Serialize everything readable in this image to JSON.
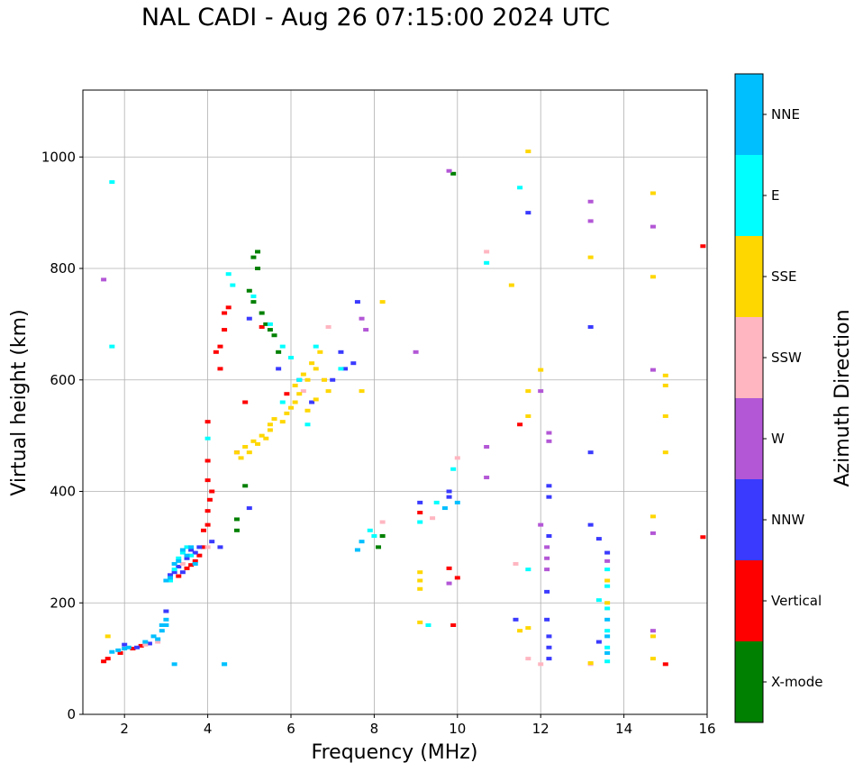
{
  "chart_data": {
    "type": "scatter",
    "title": "NAL CADI - Aug 26 07:15:00 2024 UTC",
    "xlabel": "Frequency (MHz)",
    "ylabel": "Virtual height (km)",
    "xlim": [
      1,
      16
    ],
    "ylim": [
      0,
      1120
    ],
    "xticks": [
      2,
      4,
      6,
      8,
      10,
      12,
      14,
      16
    ],
    "yticks": [
      0,
      200,
      400,
      600,
      800,
      1000
    ],
    "grid": true,
    "colorbar": {
      "label": "Azimuth Direction",
      "categories": [
        {
          "name": "X-mode",
          "color": "#008000"
        },
        {
          "name": "Vertical",
          "color": "#ff0000"
        },
        {
          "name": "NNW",
          "color": "#3a3aff"
        },
        {
          "name": "W",
          "color": "#b357d6"
        },
        {
          "name": "SSW",
          "color": "#ffb6c1"
        },
        {
          "name": "SSE",
          "color": "#ffd700"
        },
        {
          "name": "E",
          "color": "#00ffff"
        },
        {
          "name": "NNE",
          "color": "#00bfff"
        }
      ]
    },
    "series": [
      {
        "name": "Vertical",
        "points": [
          [
            1.5,
            95
          ],
          [
            1.6,
            100
          ],
          [
            1.9,
            110
          ],
          [
            2.2,
            118
          ],
          [
            2.4,
            123
          ],
          [
            3.3,
            248
          ],
          [
            3.5,
            262
          ],
          [
            3.6,
            268
          ],
          [
            3.7,
            275
          ],
          [
            3.8,
            285
          ],
          [
            3.9,
            300
          ],
          [
            3.9,
            330
          ],
          [
            4.0,
            340
          ],
          [
            4.0,
            365
          ],
          [
            4.05,
            385
          ],
          [
            4.1,
            400
          ],
          [
            4.0,
            420
          ],
          [
            4.0,
            455
          ],
          [
            4.0,
            525
          ],
          [
            4.2,
            650
          ],
          [
            4.3,
            660
          ],
          [
            4.4,
            690
          ],
          [
            4.4,
            720
          ],
          [
            4.5,
            730
          ],
          [
            4.9,
            560
          ],
          [
            4.7,
            470
          ],
          [
            4.3,
            620
          ],
          [
            5.3,
            695
          ],
          [
            5.9,
            575
          ],
          [
            9.1,
            362
          ],
          [
            9.8,
            262
          ],
          [
            9.9,
            160
          ],
          [
            10.0,
            245
          ],
          [
            11.5,
            520
          ],
          [
            15.0,
            90
          ],
          [
            15.9,
            840
          ],
          [
            15.9,
            318
          ]
        ]
      },
      {
        "name": "X-mode",
        "points": [
          [
            5.0,
            760
          ],
          [
            5.2,
            830
          ],
          [
            5.2,
            800
          ],
          [
            5.1,
            740
          ],
          [
            5.3,
            720
          ],
          [
            5.5,
            690
          ],
          [
            5.4,
            700
          ],
          [
            5.6,
            680
          ],
          [
            5.7,
            650
          ],
          [
            4.7,
            350
          ],
          [
            4.7,
            330
          ],
          [
            4.9,
            410
          ],
          [
            8.1,
            300
          ],
          [
            8.2,
            320
          ],
          [
            9.9,
            970
          ],
          [
            5.1,
            820
          ]
        ]
      },
      {
        "name": "NNW",
        "points": [
          [
            2.0,
            125
          ],
          [
            2.3,
            120
          ],
          [
            2.6,
            127
          ],
          [
            3.0,
            185
          ],
          [
            3.1,
            250
          ],
          [
            3.2,
            255
          ],
          [
            3.3,
            265
          ],
          [
            3.4,
            255
          ],
          [
            3.5,
            280
          ],
          [
            3.6,
            295
          ],
          [
            3.7,
            290
          ],
          [
            3.8,
            300
          ],
          [
            4.1,
            310
          ],
          [
            4.3,
            300
          ],
          [
            5.0,
            370
          ],
          [
            5.0,
            710
          ],
          [
            5.7,
            620
          ],
          [
            6.2,
            600
          ],
          [
            6.5,
            560
          ],
          [
            7.0,
            600
          ],
          [
            7.2,
            650
          ],
          [
            7.3,
            620
          ],
          [
            7.5,
            630
          ],
          [
            7.6,
            740
          ],
          [
            9.1,
            380
          ],
          [
            9.8,
            400
          ],
          [
            9.8,
            390
          ],
          [
            11.7,
            900
          ],
          [
            11.4,
            170
          ],
          [
            12.2,
            390
          ],
          [
            12.2,
            410
          ],
          [
            12.2,
            320
          ],
          [
            12.15,
            220
          ],
          [
            12.15,
            170
          ],
          [
            12.2,
            140
          ],
          [
            12.2,
            120
          ],
          [
            12.2,
            100
          ],
          [
            13.2,
            695
          ],
          [
            13.2,
            470
          ],
          [
            13.2,
            340
          ],
          [
            13.4,
            315
          ],
          [
            13.4,
            130
          ],
          [
            13.6,
            290
          ]
        ]
      },
      {
        "name": "W",
        "points": [
          [
            1.5,
            780
          ],
          [
            7.8,
            690
          ],
          [
            7.7,
            710
          ],
          [
            9.0,
            650
          ],
          [
            9.8,
            975
          ],
          [
            9.8,
            235
          ],
          [
            10.7,
            480
          ],
          [
            10.7,
            425
          ],
          [
            12.2,
            490
          ],
          [
            12.2,
            505
          ],
          [
            12.15,
            300
          ],
          [
            12.15,
            280
          ],
          [
            12.15,
            260
          ],
          [
            12.0,
            580
          ],
          [
            12.0,
            340
          ],
          [
            13.2,
            920
          ],
          [
            13.2,
            885
          ],
          [
            13.6,
            275
          ],
          [
            14.7,
            875
          ],
          [
            14.7,
            618
          ],
          [
            14.7,
            325
          ],
          [
            14.7,
            150
          ]
        ]
      },
      {
        "name": "SSW",
        "points": [
          [
            2.5,
            125
          ],
          [
            2.8,
            130
          ],
          [
            3.4,
            270
          ],
          [
            4.0,
            300
          ],
          [
            6.3,
            580
          ],
          [
            6.8,
            600
          ],
          [
            6.9,
            695
          ],
          [
            8.2,
            345
          ],
          [
            9.4,
            352
          ],
          [
            10.0,
            460
          ],
          [
            10.7,
            830
          ],
          [
            11.4,
            270
          ],
          [
            11.7,
            100
          ],
          [
            12.0,
            90
          ],
          [
            13.2,
            90
          ]
        ]
      },
      {
        "name": "SSE",
        "points": [
          [
            1.6,
            140
          ],
          [
            4.7,
            470
          ],
          [
            4.8,
            460
          ],
          [
            4.9,
            480
          ],
          [
            5.0,
            470
          ],
          [
            5.1,
            490
          ],
          [
            5.2,
            485
          ],
          [
            5.3,
            500
          ],
          [
            5.4,
            495
          ],
          [
            5.5,
            510
          ],
          [
            5.5,
            520
          ],
          [
            5.6,
            530
          ],
          [
            5.8,
            525
          ],
          [
            5.9,
            540
          ],
          [
            6.0,
            550
          ],
          [
            6.1,
            560
          ],
          [
            6.1,
            590
          ],
          [
            6.2,
            575
          ],
          [
            6.3,
            610
          ],
          [
            6.4,
            600
          ],
          [
            6.5,
            630
          ],
          [
            6.6,
            620
          ],
          [
            6.7,
            650
          ],
          [
            6.8,
            600
          ],
          [
            6.9,
            580
          ],
          [
            6.4,
            545
          ],
          [
            6.6,
            565
          ],
          [
            8.2,
            740
          ],
          [
            7.7,
            580
          ],
          [
            9.1,
            255
          ],
          [
            9.1,
            240
          ],
          [
            9.1,
            225
          ],
          [
            9.1,
            165
          ],
          [
            11.3,
            770
          ],
          [
            11.7,
            1010
          ],
          [
            11.7,
            580
          ],
          [
            11.7,
            535
          ],
          [
            11.7,
            155
          ],
          [
            11.5,
            150
          ],
          [
            12.0,
            618
          ],
          [
            13.2,
            820
          ],
          [
            13.2,
            92
          ],
          [
            13.6,
            240
          ],
          [
            13.6,
            200
          ],
          [
            14.7,
            935
          ],
          [
            14.7,
            785
          ],
          [
            14.7,
            355
          ],
          [
            14.7,
            140
          ],
          [
            14.7,
            100
          ],
          [
            15.0,
            608
          ],
          [
            15.0,
            590
          ],
          [
            15.0,
            535
          ],
          [
            15.0,
            470
          ]
        ]
      },
      {
        "name": "E",
        "points": [
          [
            1.7,
            955
          ],
          [
            1.7,
            660
          ],
          [
            3.1,
            240
          ],
          [
            3.2,
            260
          ],
          [
            3.3,
            280
          ],
          [
            3.4,
            290
          ],
          [
            3.5,
            300
          ],
          [
            3.6,
            285
          ],
          [
            4.0,
            495
          ],
          [
            4.4,
            90
          ],
          [
            4.5,
            790
          ],
          [
            4.6,
            770
          ],
          [
            5.1,
            750
          ],
          [
            5.5,
            700
          ],
          [
            5.8,
            660
          ],
          [
            6.0,
            640
          ],
          [
            6.2,
            600
          ],
          [
            6.6,
            660
          ],
          [
            6.4,
            520
          ],
          [
            5.8,
            560
          ],
          [
            7.2,
            620
          ],
          [
            7.9,
            330
          ],
          [
            8.0,
            320
          ],
          [
            9.1,
            345
          ],
          [
            9.3,
            160
          ],
          [
            9.5,
            380
          ],
          [
            9.9,
            440
          ],
          [
            10.7,
            810
          ],
          [
            11.5,
            945
          ],
          [
            11.7,
            260
          ],
          [
            13.6,
            260
          ],
          [
            13.6,
            230
          ],
          [
            13.6,
            190
          ],
          [
            13.6,
            150
          ],
          [
            13.6,
            120
          ],
          [
            13.6,
            95
          ],
          [
            13.4,
            205
          ]
        ]
      },
      {
        "name": "NNE",
        "points": [
          [
            1.7,
            112
          ],
          [
            1.85,
            115
          ],
          [
            2.0,
            118
          ],
          [
            2.1,
            120
          ],
          [
            2.5,
            130
          ],
          [
            2.7,
            140
          ],
          [
            2.9,
            150
          ],
          [
            3.0,
            160
          ],
          [
            3.0,
            240
          ],
          [
            3.1,
            245
          ],
          [
            3.2,
            270
          ],
          [
            3.3,
            275
          ],
          [
            3.4,
            295
          ],
          [
            3.5,
            285
          ],
          [
            3.6,
            300
          ],
          [
            3.7,
            270
          ],
          [
            2.8,
            135
          ],
          [
            2.9,
            160
          ],
          [
            3.0,
            170
          ],
          [
            3.2,
            90
          ],
          [
            4.4,
            90
          ],
          [
            7.6,
            295
          ],
          [
            7.7,
            310
          ],
          [
            9.7,
            370
          ],
          [
            10.0,
            380
          ],
          [
            13.6,
            170
          ],
          [
            13.6,
            140
          ],
          [
            13.6,
            110
          ]
        ]
      }
    ]
  }
}
